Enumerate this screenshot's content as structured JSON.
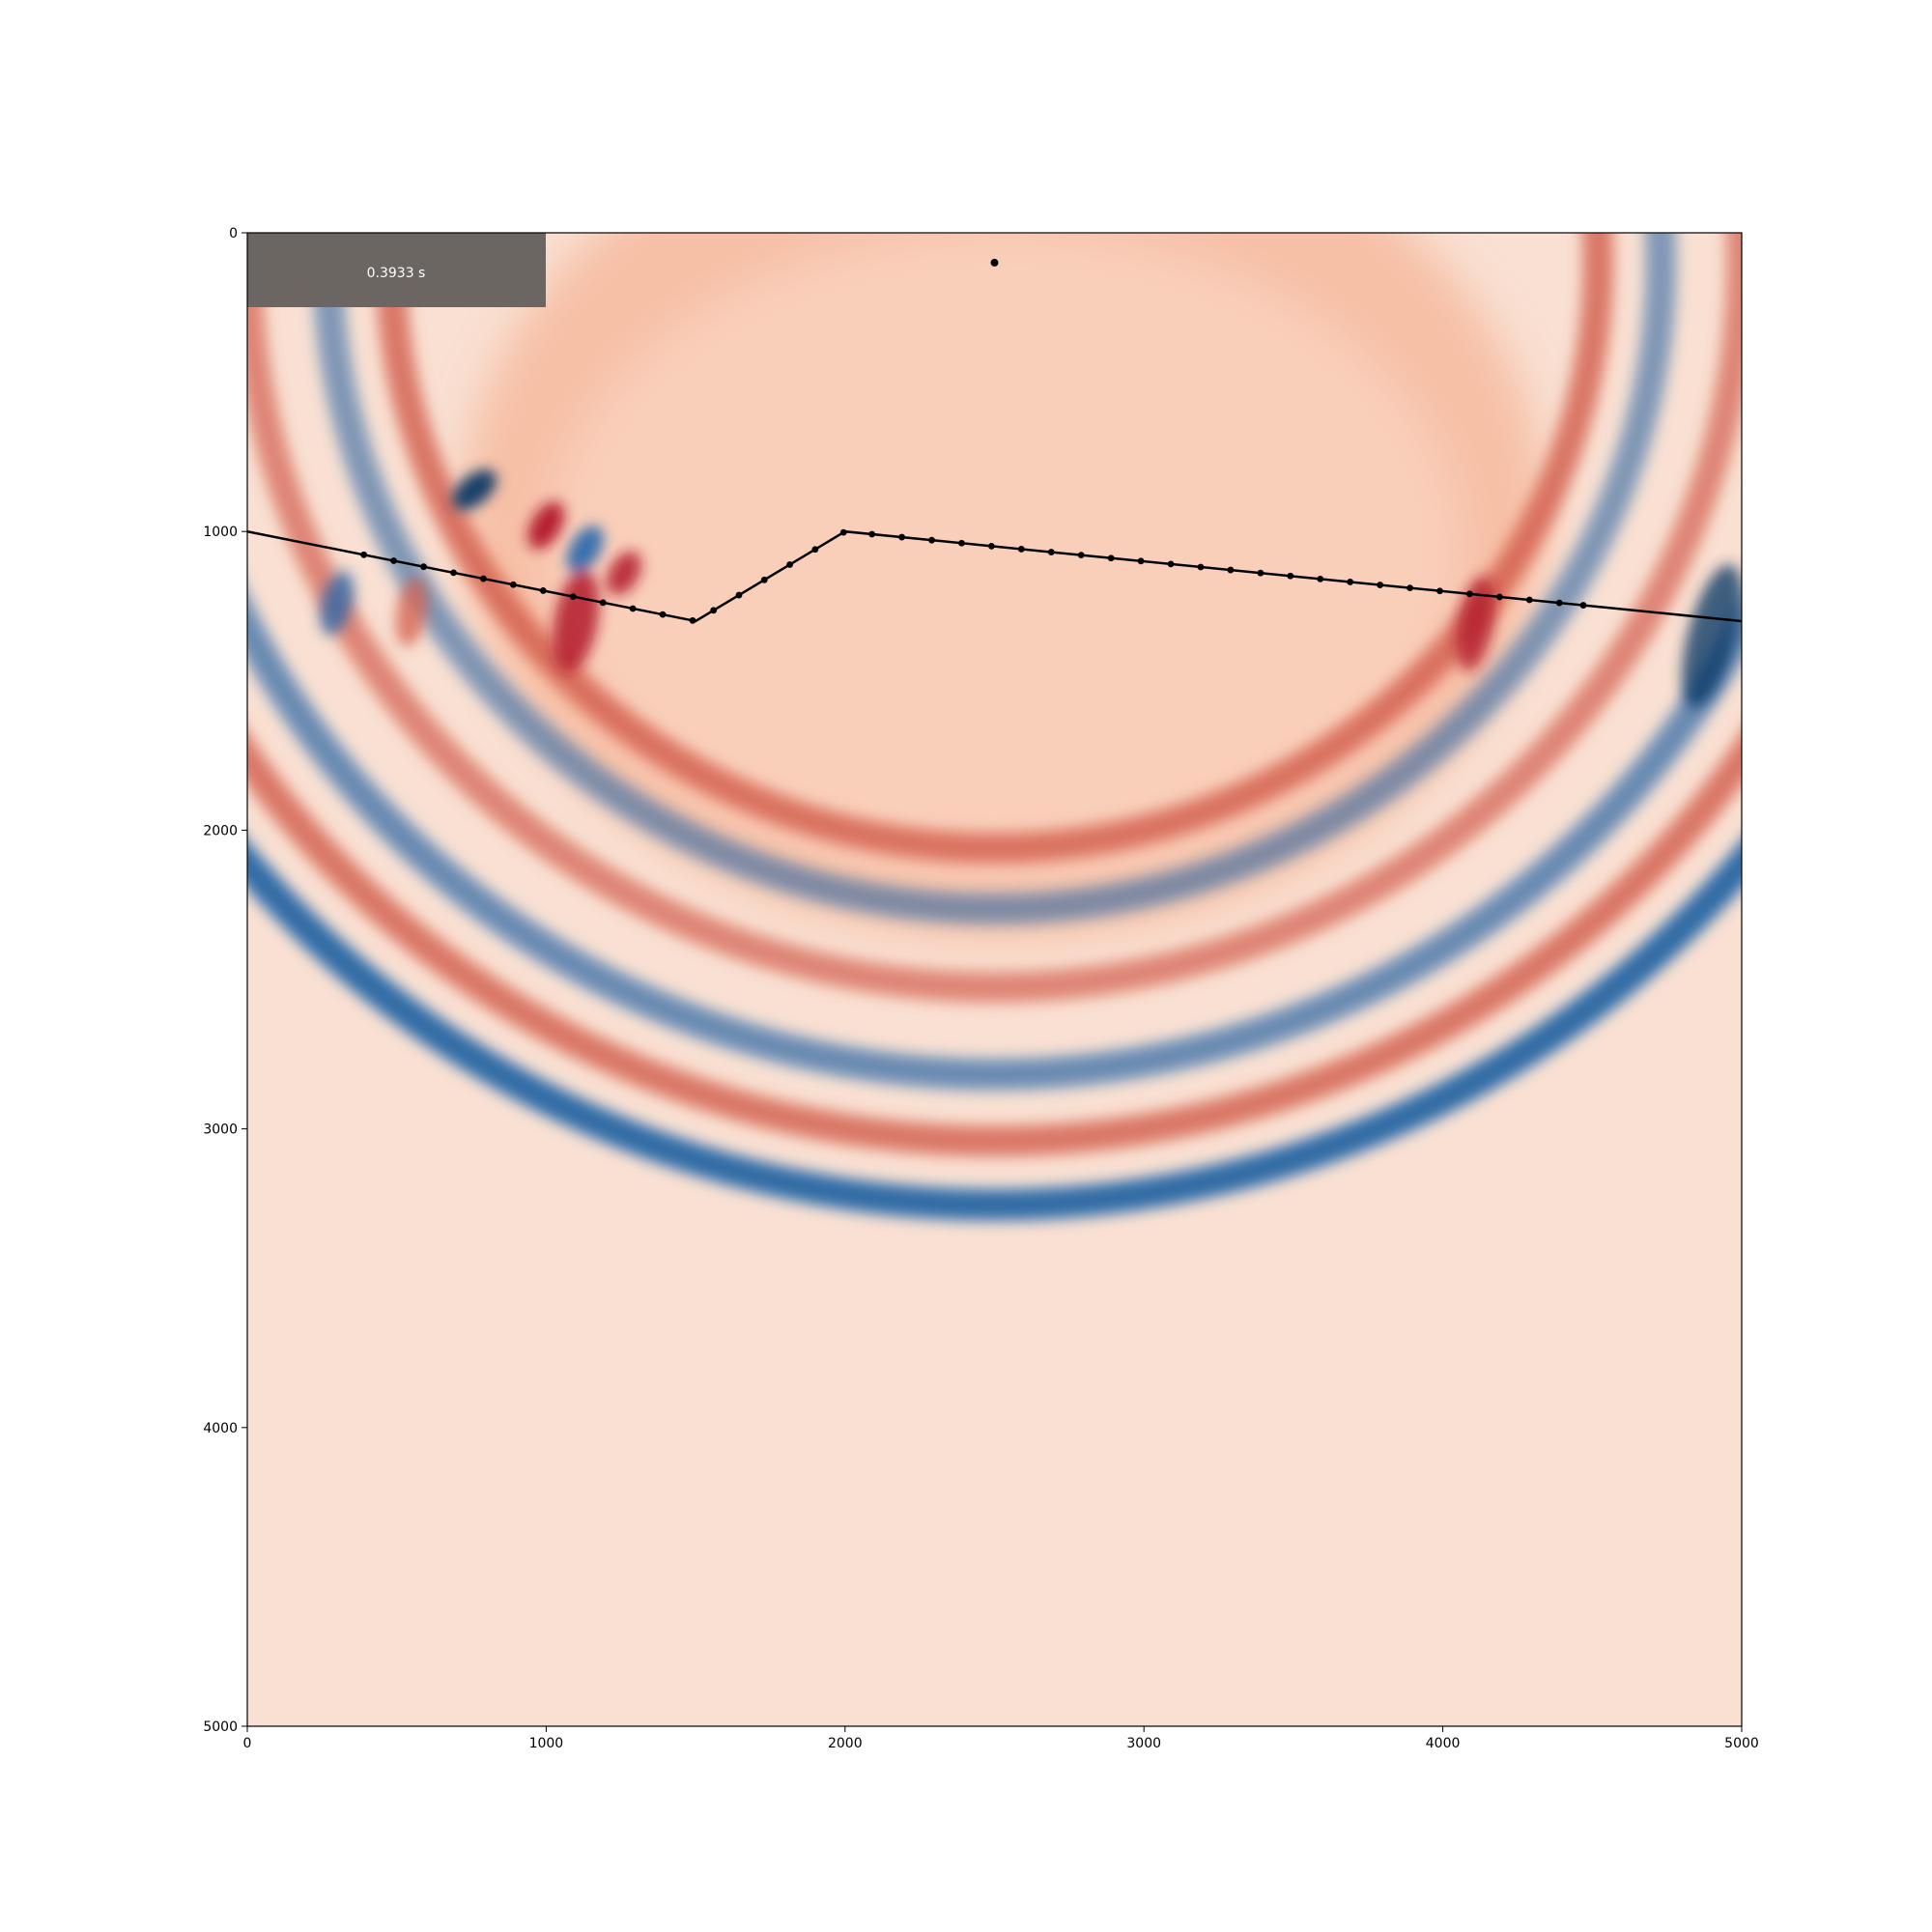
{
  "chart_data": {
    "type": "heatmap",
    "title": "",
    "xlabel": "",
    "ylabel": "",
    "xlim": [
      0,
      5000
    ],
    "ylim": [
      5000,
      0
    ],
    "x_ticks": [
      "0",
      "1000",
      "2000",
      "3000",
      "4000",
      "5000"
    ],
    "y_ticks": [
      "0",
      "1000",
      "2000",
      "3000",
      "4000",
      "5000"
    ],
    "colormap": "RdBu_r",
    "grid": false,
    "time_label": "0.3933 s",
    "source": {
      "x": 2500,
      "y": 100
    },
    "interface": {
      "x": [
        0,
        1500,
        2000,
        5000
      ],
      "y": [
        1000,
        1300,
        1000,
        1300
      ]
    },
    "receivers": {
      "x": [
        390,
        490,
        590,
        690,
        790,
        890,
        990,
        1090,
        1190,
        1290,
        1390,
        1490,
        1560,
        1645,
        1730,
        1815,
        1900,
        1995,
        2090,
        2190,
        2290,
        2390,
        2490,
        2590,
        2690,
        2790,
        2890,
        2990,
        3090,
        3190,
        3290,
        3390,
        3490,
        3590,
        3690,
        3790,
        3890,
        3990,
        4090,
        4190,
        4290,
        4390,
        4470
      ]
    },
    "wavefronts": [
      {
        "r": 2020,
        "polarity": "positive",
        "amplitude": 0.7
      },
      {
        "r": 2230,
        "polarity": "negative",
        "amplitude": 0.5
      },
      {
        "r": 2500,
        "polarity": "positive",
        "amplitude": 0.6
      },
      {
        "r": 2800,
        "polarity": "negative",
        "amplitude": 0.6
      },
      {
        "r": 3030,
        "polarity": "positive",
        "amplitude": 0.7
      },
      {
        "r": 3250,
        "polarity": "negative",
        "amplitude": 0.85
      }
    ],
    "colors": {
      "background": "#f9e0d2",
      "negative_strong": "#053061",
      "negative": "#2166ac",
      "negative_light": "#92c5de",
      "neutral": "#f7f7f7",
      "positive_light": "#f4a582",
      "positive": "#d6604d",
      "positive_strong": "#b2182b",
      "label_box": "#6b6662"
    }
  }
}
